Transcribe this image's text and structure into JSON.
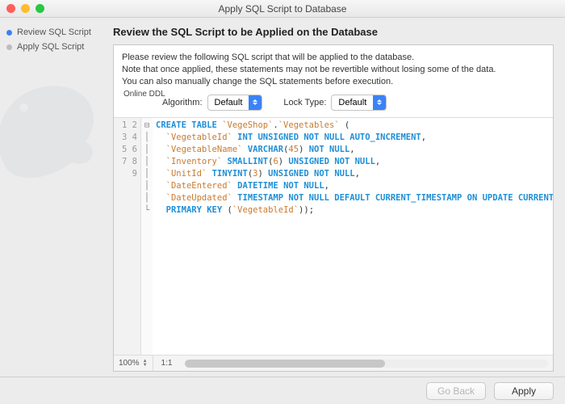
{
  "window": {
    "title": "Apply SQL Script to Database"
  },
  "traffic_colors": {
    "close": "#ff5f57",
    "min": "#febc2e",
    "max": "#28c840"
  },
  "sidebar": {
    "steps": [
      {
        "label": "Review SQL Script",
        "bullet_color": "#3b82f6",
        "active": true
      },
      {
        "label": "Apply SQL Script",
        "bullet_color": "#bdbdbd",
        "active": false
      }
    ]
  },
  "heading": "Review the SQL Script to be Applied on the Database",
  "intro": {
    "l1": "Please review the following SQL script that will be applied to the database.",
    "l2": "Note that once applied, these statements may not be revertible without losing some of the data.",
    "l3": "You can also manually change the SQL statements before execution."
  },
  "ddl": {
    "section_label": "Online DDL",
    "algorithm_label": "Algorithm:",
    "algorithm_value": "Default",
    "lock_label": "Lock Type:",
    "lock_value": "Default",
    "select_accent": "#3b82f6"
  },
  "editor": {
    "line_count": 9,
    "zoom": "100%",
    "ratio": "1:1",
    "colors": {
      "keyword": "#1f8fd6",
      "identifier": "#c97a2e",
      "number": "#c97a2e",
      "text": "#333333",
      "gutter_bg": "#f2f2f2",
      "gutter_fg": "#9a9a9a"
    },
    "sql": {
      "schema": "VegeShop",
      "table": "Vegetables",
      "columns": [
        {
          "name": "VegetableId",
          "type": "INT UNSIGNED NOT NULL AUTO_INCREMENT"
        },
        {
          "name": "VegetableName",
          "type": "VARCHAR",
          "len": 45,
          "tail": "NOT NULL"
        },
        {
          "name": "Inventory",
          "type": "SMALLINT",
          "len": 6,
          "tail": "UNSIGNED NOT NULL"
        },
        {
          "name": "UnitId",
          "type": "TINYINT",
          "len": 3,
          "tail": "UNSIGNED NOT NULL"
        },
        {
          "name": "DateEntered",
          "type": "DATETIME NOT NULL"
        },
        {
          "name": "DateUpdated",
          "type": "TIMESTAMP NOT NULL DEFAULT CURRENT_TIMESTAMP ON UPDATE CURRENT_TIMESTAMP"
        }
      ],
      "pk": "VegetableId"
    }
  },
  "footer": {
    "back": "Go Back",
    "apply": "Apply"
  }
}
